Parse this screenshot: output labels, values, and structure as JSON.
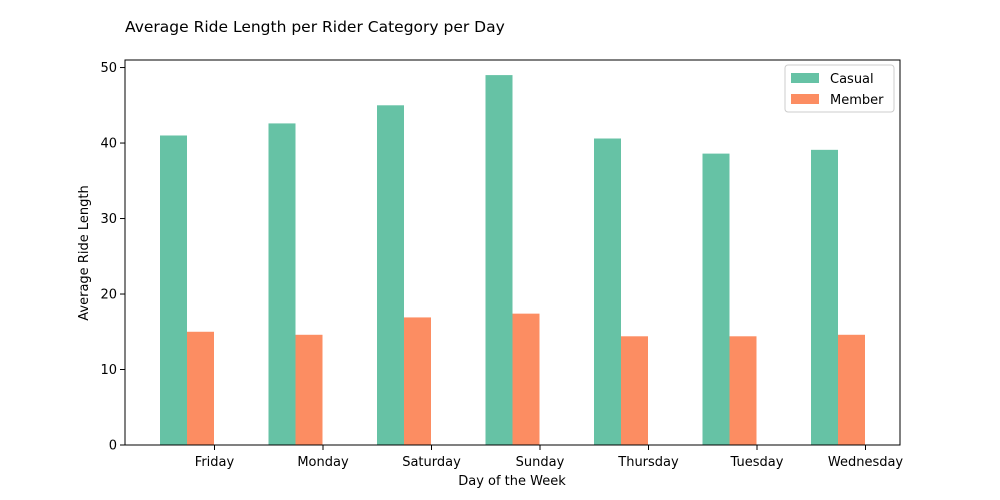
{
  "chart_data": {
    "type": "bar",
    "title": "Average Ride Length per Rider Category per Day",
    "xlabel": "Day of the Week",
    "ylabel": "Average Ride Length",
    "categories": [
      "Friday",
      "Monday",
      "Saturday",
      "Sunday",
      "Thursday",
      "Tuesday",
      "Wednesday"
    ],
    "series": [
      {
        "name": "Casual",
        "color": "#66c2a5",
        "values": [
          41.0,
          42.6,
          45.0,
          49.0,
          40.6,
          38.6,
          39.1
        ]
      },
      {
        "name": "Member",
        "color": "#fc8d62",
        "values": [
          15.0,
          14.6,
          16.9,
          17.4,
          14.4,
          14.4,
          14.6
        ]
      }
    ],
    "ylim": [
      0,
      51
    ],
    "yticks": [
      0,
      10,
      20,
      30,
      40,
      50
    ],
    "grid": false,
    "legend": "top-right"
  }
}
